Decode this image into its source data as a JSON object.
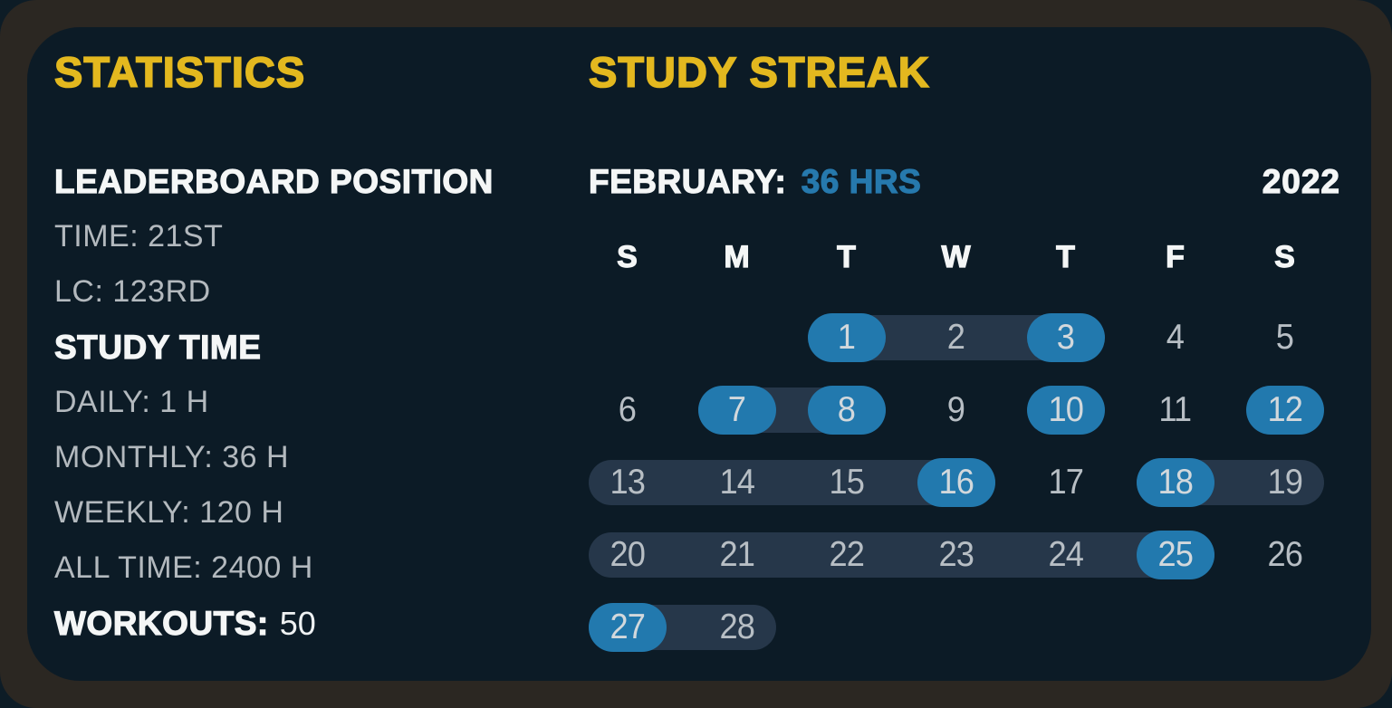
{
  "colors": {
    "page_bg": "#0d1c26",
    "frame_brown": "#2b2722",
    "card_bg": "#0c1b26",
    "accent_yellow": "#e3b81f",
    "accent_blue": "#2279ae",
    "streak_band": "#26374a",
    "text_white": "#f4f6f6",
    "text_gray": "#b3b9be"
  },
  "stats": {
    "title": "STATISTICS",
    "items": [
      {
        "style": "header",
        "label": "LEADERBOARD POSITION"
      },
      {
        "style": "value",
        "label": "TIME: 21ST"
      },
      {
        "style": "value",
        "label": "LC: 123RD"
      },
      {
        "style": "header",
        "label": "STUDY TIME"
      },
      {
        "style": "value",
        "label": "DAILY: 1 H"
      },
      {
        "style": "value",
        "label": "MONTHLY: 36 H"
      },
      {
        "style": "value",
        "label": "WEEKLY: 120 H"
      },
      {
        "style": "value",
        "label": "ALL TIME: 2400 H"
      },
      {
        "style": "header-value",
        "label": "WORKOUTS:",
        "value": "50"
      }
    ]
  },
  "streak": {
    "title": "STUDY STREAK",
    "month_label": "FEBRUARY:",
    "month_total": "36 HRS",
    "year": "2022",
    "day_headers": [
      "S",
      "M",
      "T",
      "W",
      "T",
      "F",
      "S"
    ],
    "first_day_column": 2,
    "days_in_month": 28,
    "studied_days": [
      1,
      3,
      7,
      8,
      10,
      12,
      16,
      18,
      25,
      27
    ],
    "streak_bands": [
      [
        1,
        3
      ],
      [
        7,
        8
      ],
      [
        13,
        16
      ],
      [
        18,
        19
      ],
      [
        20,
        25
      ],
      [
        27,
        28
      ]
    ]
  }
}
